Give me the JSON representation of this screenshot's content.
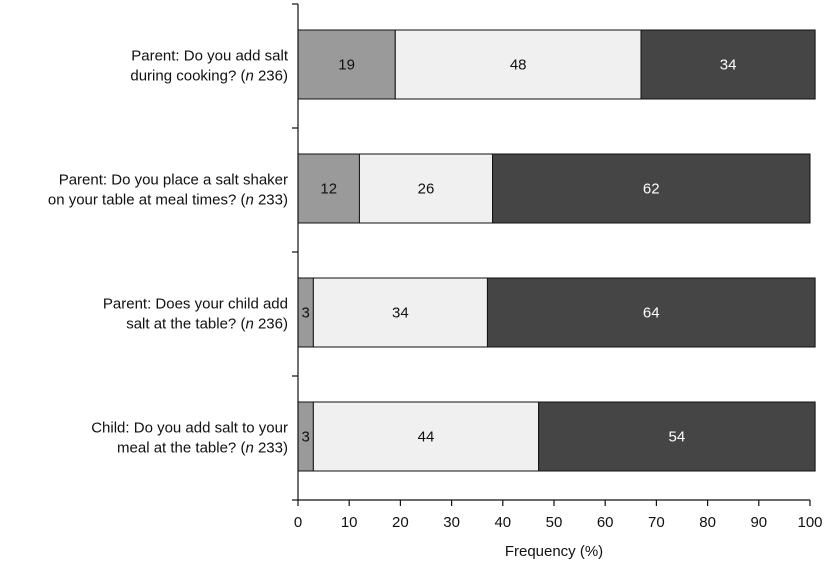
{
  "chart_data": {
    "type": "bar",
    "orientation": "horizontal",
    "stacked": true,
    "xlabel": "Frequency (%)",
    "xlim": [
      0,
      100
    ],
    "xticks": [
      0,
      10,
      20,
      30,
      40,
      50,
      60,
      70,
      80,
      90,
      100
    ],
    "grid": false,
    "legend": "none",
    "categories": [
      {
        "line1": "Parent: Do you add salt",
        "line2_pre": "during cooking? (",
        "n_italic": "n",
        "line2_post": " 236)"
      },
      {
        "line1": "Parent: Do you place a salt shaker",
        "line2_pre": "on your table at meal times? (",
        "n_italic": "n",
        "line2_post": " 233)"
      },
      {
        "line1": "Parent: Does your child add",
        "line2_pre": "salt at the table? (",
        "n_italic": "n",
        "line2_post": " 236)"
      },
      {
        "line1": "Child: Do you add salt to your",
        "line2_pre": "meal at the table? (",
        "n_italic": "n",
        "line2_post": " 233)"
      }
    ],
    "series": [
      {
        "values": [
          19,
          12,
          3,
          3
        ],
        "color": "#9a9a9a",
        "label_color": "#111111"
      },
      {
        "values": [
          48,
          26,
          34,
          44
        ],
        "color": "#f0f0f0",
        "label_color": "#111111"
      },
      {
        "values": [
          34,
          62,
          64,
          54
        ],
        "color": "#454545",
        "label_color": "#ffffff"
      }
    ]
  }
}
